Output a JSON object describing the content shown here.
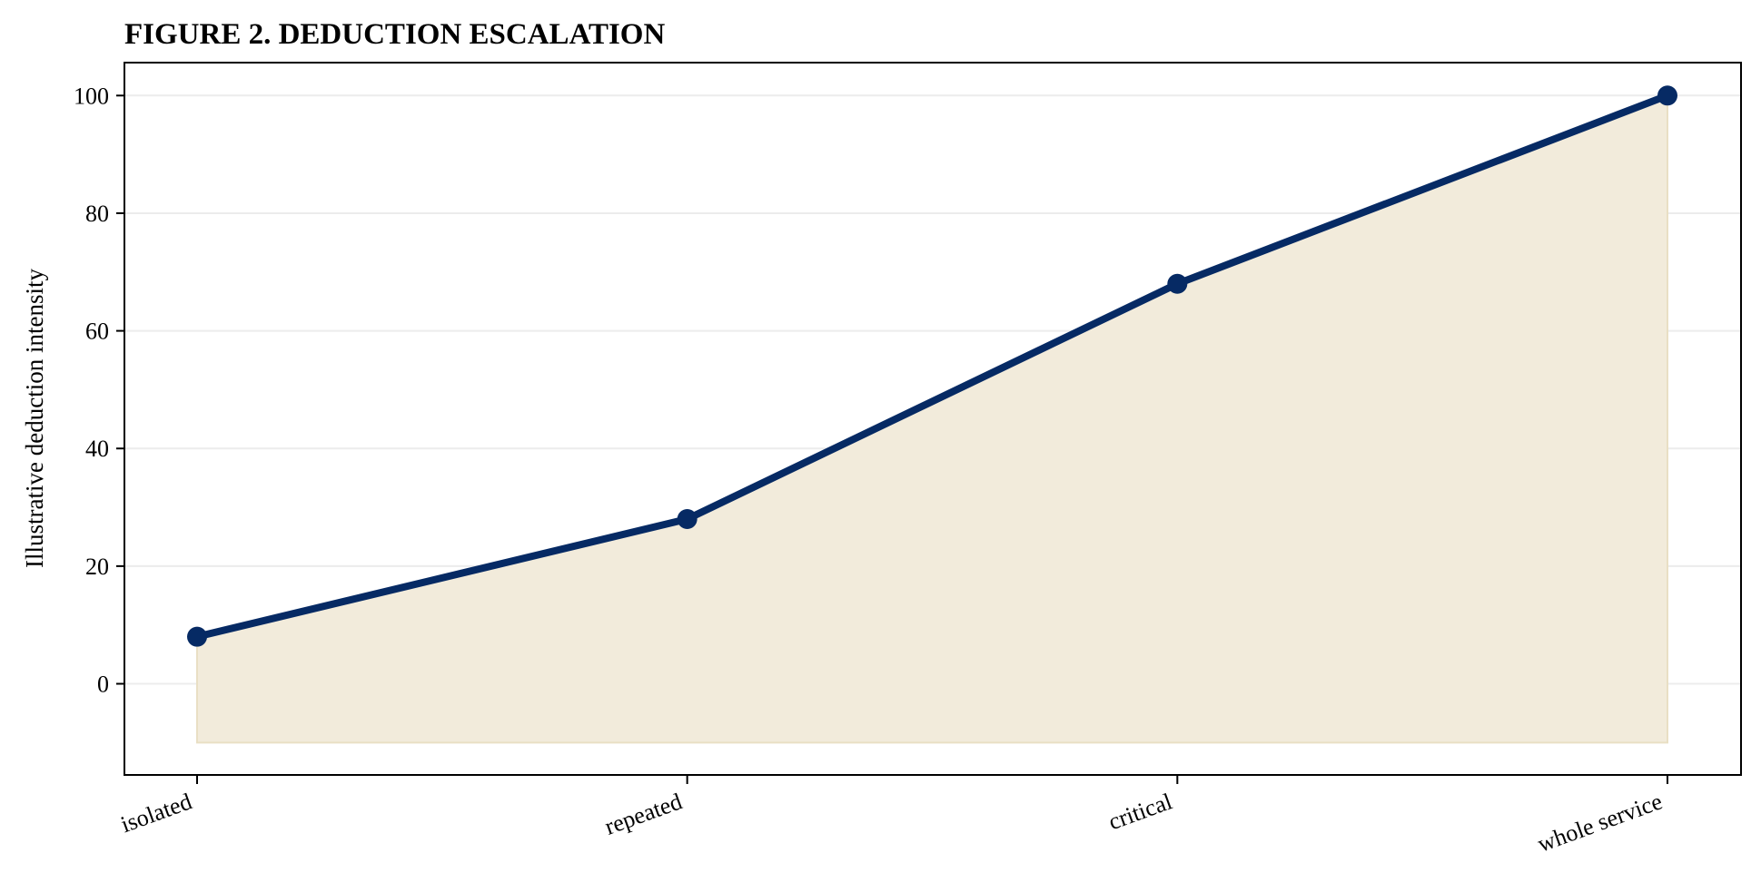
{
  "chart_data": {
    "type": "area",
    "title": "FIGURE 2. DEDUCTION ESCALATION",
    "xlabel": "",
    "ylabel": "Illustrative deduction intensity",
    "categories": [
      "isolated",
      "repeated",
      "critical",
      "whole service"
    ],
    "series": [
      {
        "values": [
          8,
          28,
          68,
          100
        ]
      }
    ],
    "fill_baseline": -10,
    "ylim": [
      -15.5,
      105.6
    ],
    "yticks": [
      0,
      20,
      40,
      60,
      80,
      100
    ],
    "grid": "horizontal",
    "legend": "none",
    "colors": {
      "line": "#062a64",
      "fill": "#f2ebdb",
      "fill_edge": "#e9dfc4",
      "grid": "#ececec",
      "axis": "#000000"
    }
  }
}
